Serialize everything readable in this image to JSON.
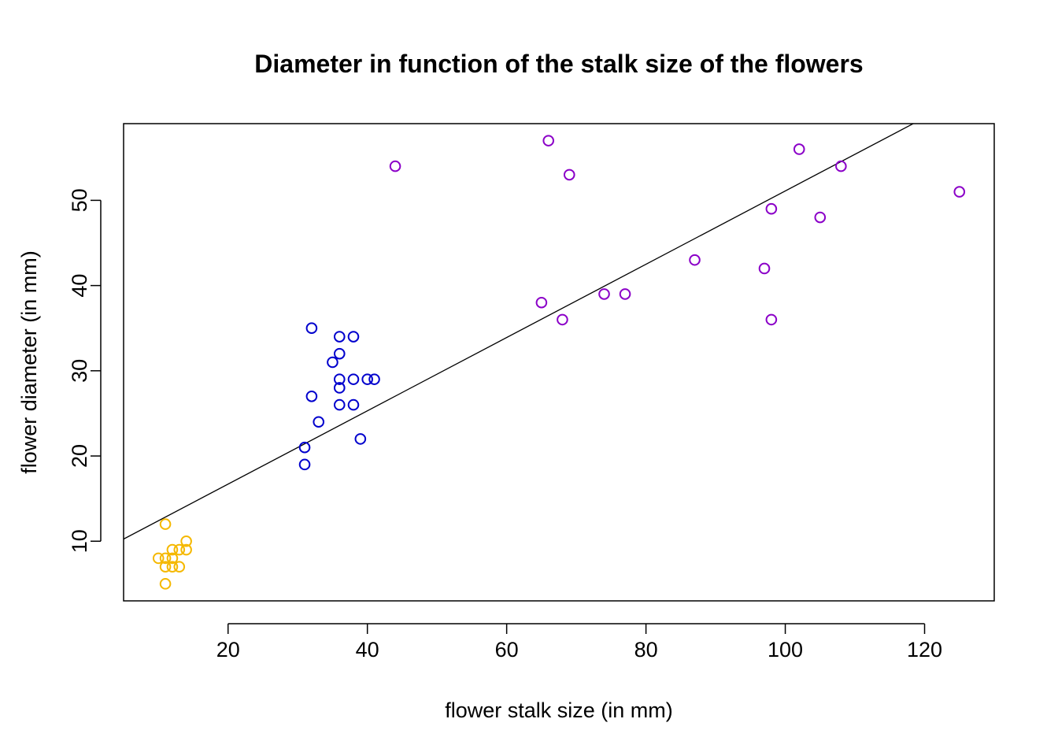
{
  "chart_data": {
    "type": "scatter",
    "title": "Diameter in function of the stalk size of the flowers",
    "xlabel": "flower stalk size (in mm)",
    "ylabel": "flower diameter (in mm)",
    "xlim": [
      5,
      130
    ],
    "ylim": [
      3,
      59
    ],
    "x_ticks": [
      20,
      40,
      60,
      80,
      100,
      120
    ],
    "y_ticks": [
      10,
      20,
      30,
      40,
      50
    ],
    "grid": false,
    "legend": "none",
    "series": [
      {
        "color": "#F5B800",
        "points": [
          {
            "x": 10,
            "y": 8
          },
          {
            "x": 11,
            "y": 12
          },
          {
            "x": 11,
            "y": 8
          },
          {
            "x": 11,
            "y": 7
          },
          {
            "x": 11,
            "y": 5
          },
          {
            "x": 12,
            "y": 9
          },
          {
            "x": 12,
            "y": 8
          },
          {
            "x": 12,
            "y": 7
          },
          {
            "x": 13,
            "y": 9
          },
          {
            "x": 13,
            "y": 7
          },
          {
            "x": 14,
            "y": 10
          },
          {
            "x": 14,
            "y": 9
          }
        ]
      },
      {
        "color": "#0000CD",
        "points": [
          {
            "x": 31,
            "y": 21
          },
          {
            "x": 31,
            "y": 19
          },
          {
            "x": 32,
            "y": 35
          },
          {
            "x": 32,
            "y": 27
          },
          {
            "x": 33,
            "y": 24
          },
          {
            "x": 35,
            "y": 31
          },
          {
            "x": 36,
            "y": 34
          },
          {
            "x": 36,
            "y": 32
          },
          {
            "x": 36,
            "y": 29
          },
          {
            "x": 36,
            "y": 28
          },
          {
            "x": 36,
            "y": 26
          },
          {
            "x": 38,
            "y": 34
          },
          {
            "x": 38,
            "y": 29
          },
          {
            "x": 38,
            "y": 26
          },
          {
            "x": 39,
            "y": 22
          },
          {
            "x": 40,
            "y": 29
          },
          {
            "x": 41,
            "y": 29
          }
        ]
      },
      {
        "color": "#8B00C8",
        "points": [
          {
            "x": 44,
            "y": 54
          },
          {
            "x": 65,
            "y": 38
          },
          {
            "x": 66,
            "y": 57
          },
          {
            "x": 68,
            "y": 36
          },
          {
            "x": 69,
            "y": 53
          },
          {
            "x": 74,
            "y": 39
          },
          {
            "x": 77,
            "y": 39
          },
          {
            "x": 87,
            "y": 43
          },
          {
            "x": 97,
            "y": 42
          },
          {
            "x": 98,
            "y": 49
          },
          {
            "x": 98,
            "y": 36
          },
          {
            "x": 102,
            "y": 56
          },
          {
            "x": 105,
            "y": 48
          },
          {
            "x": 108,
            "y": 54
          },
          {
            "x": 125,
            "y": 51
          }
        ]
      }
    ],
    "regression_line": {
      "intercept": 8.1,
      "slope": 0.43
    }
  }
}
